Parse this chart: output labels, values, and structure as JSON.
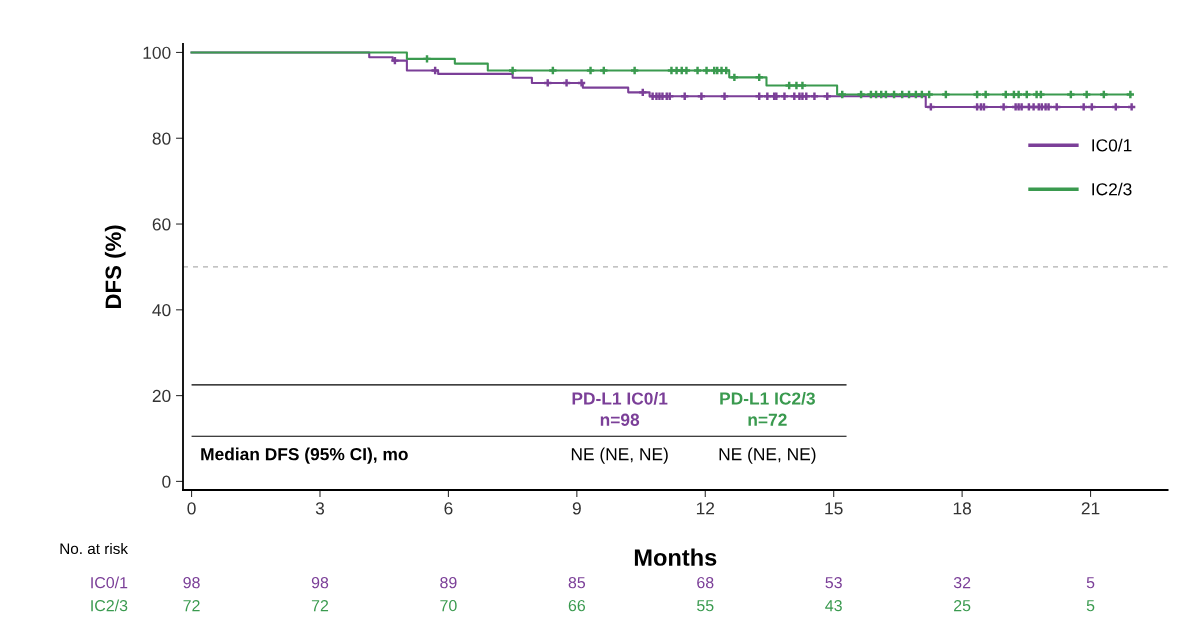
{
  "chart_data": {
    "type": "step",
    "xlabel": "Months",
    "ylabel": "DFS (%)",
    "xlim": [
      -0.2,
      22.8
    ],
    "ylim": [
      -2,
      102
    ],
    "xticks": [
      0,
      3,
      6,
      9,
      12,
      15,
      18,
      21
    ],
    "yticks": [
      0,
      20,
      40,
      60,
      80,
      100
    ],
    "grid": false,
    "legend": "right",
    "series": [
      {
        "name": "IC0/1",
        "color": "#7b3f98",
        "x": [
          0,
          4.15,
          4.7,
          5.03,
          5.76,
          7.5,
          7.95,
          9.14,
          10.2,
          10.7,
          17.15,
          21.96
        ],
        "values": [
          100,
          98.9,
          98.1,
          95.8,
          95.0,
          94.1,
          92.9,
          91.8,
          90.7,
          89.8,
          87.3,
          87.3
        ]
      },
      {
        "name": "IC2/3",
        "color": "#3a9a4f",
        "x": [
          0,
          5.03,
          6.15,
          6.92,
          12.56,
          13.43,
          15.08,
          21.95
        ],
        "values": [
          100,
          98.5,
          97.4,
          95.8,
          94.2,
          92.3,
          90.2,
          90.2
        ]
      },
      {
        "type": "scatter",
        "marker": "cross",
        "color": "#7b3f98",
        "x": [
          4.75,
          5.69,
          8.32,
          8.76,
          9.11,
          10.54,
          10.77,
          10.86,
          10.93,
          11.0,
          11.1,
          11.17,
          11.52,
          11.91,
          12.45,
          13.26,
          13.45,
          13.61,
          13.66,
          13.85,
          14.08,
          14.2,
          14.27,
          14.36,
          14.55,
          14.85,
          17.27,
          18.35,
          18.44,
          18.51,
          18.97,
          19.25,
          19.32,
          19.39,
          19.56,
          19.67,
          19.79,
          19.86,
          19.95,
          20.02,
          20.21,
          20.84,
          21.03,
          21.59,
          21.96
        ],
        "values": [
          98.1,
          95.8,
          92.9,
          92.9,
          92.9,
          90.7,
          89.8,
          89.8,
          89.8,
          89.8,
          89.8,
          89.8,
          89.8,
          89.8,
          89.8,
          89.8,
          89.8,
          89.8,
          89.8,
          89.8,
          89.8,
          89.8,
          89.8,
          89.8,
          89.8,
          89.8,
          87.3,
          87.3,
          87.3,
          87.3,
          87.3,
          87.3,
          87.3,
          87.3,
          87.3,
          87.3,
          87.3,
          87.3,
          87.3,
          87.3,
          87.3,
          87.3,
          87.3,
          87.3,
          87.3
        ]
      },
      {
        "type": "scatter",
        "marker": "cross",
        "color": "#3a9a4f",
        "x": [
          5.5,
          7.5,
          8.44,
          9.32,
          9.63,
          10.35,
          11.21,
          11.33,
          11.45,
          11.56,
          11.82,
          12.03,
          12.21,
          12.28,
          12.38,
          12.49,
          12.68,
          13.26,
          13.96,
          14.13,
          14.27,
          15.2,
          15.64,
          15.87,
          15.99,
          16.11,
          16.22,
          16.41,
          16.6,
          16.76,
          16.92,
          17.06,
          17.23,
          17.62,
          18.35,
          18.55,
          19.02,
          19.21,
          19.32,
          19.51,
          19.74,
          19.84,
          20.54,
          20.91,
          21.31,
          21.93
        ],
        "values": [
          98.5,
          95.8,
          95.8,
          95.8,
          95.8,
          95.8,
          95.8,
          95.8,
          95.8,
          95.8,
          95.8,
          95.8,
          95.8,
          95.8,
          95.8,
          95.8,
          94.2,
          94.2,
          92.3,
          92.3,
          92.3,
          90.2,
          90.2,
          90.2,
          90.2,
          90.2,
          90.2,
          90.2,
          90.2,
          90.2,
          90.2,
          90.2,
          90.2,
          90.2,
          90.2,
          90.2,
          90.2,
          90.2,
          90.2,
          90.2,
          90.2,
          90.2,
          90.2,
          90.2,
          90.2,
          90.2
        ]
      }
    ],
    "ref_lines": [
      {
        "axis": "y",
        "value": 50,
        "color": "#b0b0b0",
        "line_style": "dashed"
      }
    ],
    "annotations": [
      "PD-L1 IC0/1\nn=98",
      "PD-L1 IC2/3\nn=72",
      "Median DFS (95% CI), mo",
      "NE (NE, NE)",
      "NE (NE, NE)",
      "No. at risk",
      "IC0/1",
      "98",
      "98",
      "89",
      "85",
      "68",
      "53",
      "32",
      "5",
      "IC2/3",
      "72",
      "72",
      "70",
      "66",
      "55",
      "43",
      "25",
      "5"
    ]
  }
}
